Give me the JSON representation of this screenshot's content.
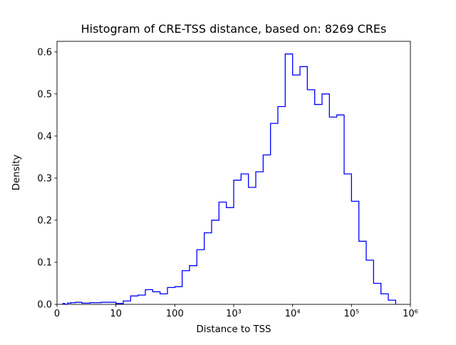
{
  "chart_data": {
    "type": "histogram",
    "histtype": "step",
    "title": "Histogram of CRE-TSS distance, based on: 8269 CREs",
    "sample_size": 8269,
    "xlabel": "Distance to TSS",
    "ylabel": "Density",
    "line_color": "#0000ff",
    "axis_color": "#000000",
    "background_color": "#ffffff",
    "x_scale": "symlog",
    "x_axis_units_total": 6,
    "ylim": [
      0,
      0.625
    ],
    "grid": false,
    "legend": "none",
    "x_ticks": [
      {
        "label": "0",
        "value": 0
      },
      {
        "label": "10",
        "value": 10
      },
      {
        "label": "100",
        "value": 100
      },
      {
        "label": "10³",
        "value": 1000
      },
      {
        "label": "10⁴",
        "value": 10000
      },
      {
        "label": "10⁵",
        "value": 100000
      },
      {
        "label": "10⁶",
        "value": 1000000
      }
    ],
    "y_ticks": [
      {
        "label": "0.0",
        "value": 0.0
      },
      {
        "label": "0.1",
        "value": 0.1
      },
      {
        "label": "0.2",
        "value": 0.2
      },
      {
        "label": "0.3",
        "value": 0.3
      },
      {
        "label": "0.4",
        "value": 0.4
      },
      {
        "label": "0.5",
        "value": 0.5
      },
      {
        "label": "0.6",
        "value": 0.6
      }
    ],
    "bins": {
      "log10_start": 0,
      "log10_width": 0.125,
      "densities": [
        0.002,
        0.0,
        0.003,
        0.004,
        0.005,
        0.003,
        0.004,
        0.005,
        0.002,
        0.008,
        0.02,
        0.022,
        0.035,
        0.03,
        0.025,
        0.04,
        0.042,
        0.08,
        0.092,
        0.13,
        0.17,
        0.2,
        0.243,
        0.23,
        0.295,
        0.31,
        0.278,
        0.315,
        0.355,
        0.43,
        0.47,
        0.595,
        0.545,
        0.565,
        0.51,
        0.475,
        0.5,
        0.445,
        0.45,
        0.31,
        0.245,
        0.15,
        0.105,
        0.05,
        0.025,
        0.01
      ]
    },
    "peak_density": 0.595
  }
}
